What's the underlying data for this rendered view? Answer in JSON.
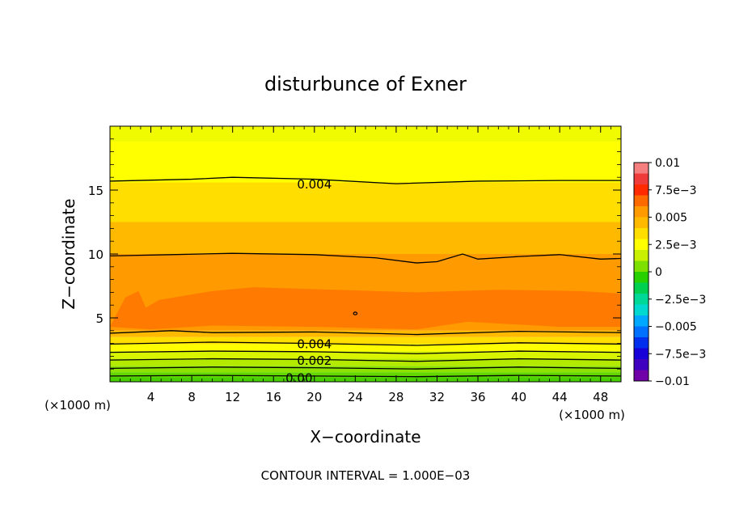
{
  "chart_data": {
    "type": "heatmap",
    "title": "disturbunce of Exner",
    "xlabel": "X−coordinate",
    "ylabel": "Z−coordinate",
    "x_unit_left": "(×1000 m)",
    "x_unit_right": "(×1000 m)",
    "xlim": [
      0,
      50
    ],
    "ylim": [
      0,
      20
    ],
    "x_ticks": [
      4,
      8,
      12,
      16,
      20,
      24,
      28,
      32,
      36,
      40,
      44,
      48
    ],
    "x_tick_labels": [
      "4",
      "8",
      "12",
      "16",
      "20",
      "24",
      "28",
      "32",
      "36",
      "40",
      "44",
      "48"
    ],
    "y_ticks": [
      5,
      10,
      15
    ],
    "y_tick_labels": [
      "5",
      "10",
      "15"
    ],
    "footer": "CONTOUR INTERVAL = 1.000E−03",
    "contour_labels": [
      {
        "text": "0.004",
        "x": 20,
        "y": 15.5
      },
      {
        "text": "0.004",
        "x": 20,
        "y": 3.0
      },
      {
        "text": "0.002",
        "x": 20,
        "y": 1.7
      },
      {
        "text": "0.00",
        "x": 18.5,
        "y": 0.35
      }
    ],
    "colorbar": {
      "ticks": [
        0.01,
        0.0075,
        0.005,
        0.0025,
        0,
        -0.0025,
        -0.005,
        -0.0075,
        -0.01
      ],
      "tick_labels": [
        "0.01",
        "7.5e−3",
        "0.005",
        "2.5e−3",
        "0",
        "−2.5e−3",
        "−0.005",
        "−7.5e−3",
        "−0.01"
      ],
      "colors": [
        "#f57f7f",
        "#f03b3b",
        "#ff2a00",
        "#ff6a00",
        "#ff9a00",
        "#ffba00",
        "#ffde00",
        "#ffff00",
        "#c8f000",
        "#7ee000",
        "#28d000",
        "#00d050",
        "#00d898",
        "#00d8d0",
        "#00a8ff",
        "#0070ff",
        "#0030ee",
        "#1800d8",
        "#4000c0",
        "#7000a8"
      ]
    },
    "bands": [
      {
        "color": "#48d000",
        "z_top": 0.35
      },
      {
        "color": "#62d800",
        "z_top": 0.75
      },
      {
        "color": "#8ee200",
        "z_top": 1.25
      },
      {
        "color": "#b4ea00",
        "z_top": 1.8
      },
      {
        "color": "#d8f400",
        "z_top": 2.4
      },
      {
        "color": "#fffe00",
        "z_top": 2.95
      },
      {
        "color": "#ffde00",
        "z_top": 3.5
      },
      {
        "color": "#ffba00",
        "z_top": 4.0
      },
      {
        "color": "#ff9a00",
        "z_top": 10.0
      },
      {
        "color": "#ffba00",
        "z_top": 12.5
      },
      {
        "color": "#ffde00",
        "z_top": 15.6
      },
      {
        "color": "#ffff00",
        "z_top": 18.8
      },
      {
        "color": "#f0fa00",
        "z_top": 20.0
      }
    ],
    "core_region": {
      "color": "#ff7a00",
      "z_bottom": 4.1,
      "z_top": 7.4
    },
    "contour_lines": [
      {
        "name": "0.004-upper",
        "points": [
          [
            0,
            15.7
          ],
          [
            8,
            15.85
          ],
          [
            12,
            16.0
          ],
          [
            20,
            15.85
          ],
          [
            28,
            15.5
          ],
          [
            36,
            15.7
          ],
          [
            44,
            15.75
          ],
          [
            50,
            15.75
          ]
        ]
      },
      {
        "name": "0.005-upper",
        "points": [
          [
            0,
            9.85
          ],
          [
            6,
            9.95
          ],
          [
            12,
            10.05
          ],
          [
            20,
            9.95
          ],
          [
            26,
            9.7
          ],
          [
            30,
            9.3
          ],
          [
            32,
            9.4
          ],
          [
            34.5,
            10.0
          ],
          [
            36,
            9.6
          ],
          [
            40,
            9.8
          ],
          [
            44,
            9.95
          ],
          [
            48,
            9.6
          ],
          [
            50,
            9.65
          ]
        ]
      },
      {
        "name": "0.005-lower",
        "points": [
          [
            0,
            3.8
          ],
          [
            6,
            4.0
          ],
          [
            10,
            3.85
          ],
          [
            20,
            3.9
          ],
          [
            30,
            3.7
          ],
          [
            40,
            3.95
          ],
          [
            50,
            3.85
          ]
        ]
      },
      {
        "name": "0.004-lower",
        "points": [
          [
            0,
            2.95
          ],
          [
            10,
            3.1
          ],
          [
            20,
            3.0
          ],
          [
            30,
            2.85
          ],
          [
            40,
            3.05
          ],
          [
            50,
            2.95
          ]
        ]
      },
      {
        "name": "0.003",
        "points": [
          [
            0,
            2.3
          ],
          [
            10,
            2.4
          ],
          [
            20,
            2.35
          ],
          [
            30,
            2.2
          ],
          [
            40,
            2.4
          ],
          [
            50,
            2.3
          ]
        ]
      },
      {
        "name": "0.002",
        "points": [
          [
            0,
            1.7
          ],
          [
            10,
            1.8
          ],
          [
            20,
            1.75
          ],
          [
            30,
            1.6
          ],
          [
            40,
            1.8
          ],
          [
            50,
            1.7
          ]
        ]
      },
      {
        "name": "0.001",
        "points": [
          [
            0,
            1.05
          ],
          [
            10,
            1.15
          ],
          [
            20,
            1.1
          ],
          [
            30,
            1.0
          ],
          [
            40,
            1.15
          ],
          [
            50,
            1.05
          ]
        ]
      },
      {
        "name": "0.000",
        "points": [
          [
            0,
            0.45
          ],
          [
            10,
            0.5
          ],
          [
            20,
            0.45
          ],
          [
            30,
            0.4
          ],
          [
            40,
            0.5
          ],
          [
            50,
            0.45
          ]
        ]
      }
    ],
    "grid": false,
    "legend": "colorbar-right"
  }
}
